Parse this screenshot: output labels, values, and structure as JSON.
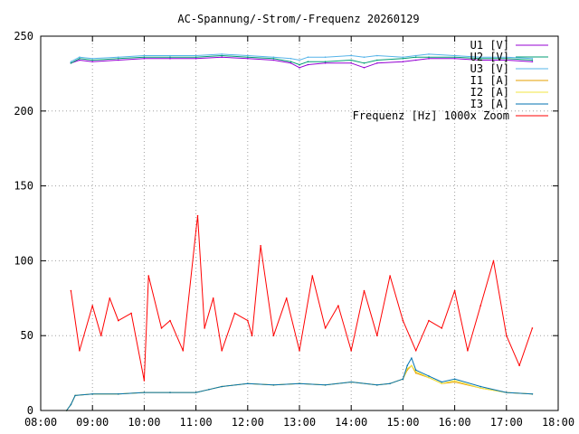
{
  "chart_data": {
    "type": "line",
    "title": "AC-Spannung/-Strom/-Frequenz 20260129",
    "xlabel": "",
    "ylabel": "",
    "xlim": [
      "08:00",
      "18:00"
    ],
    "ylim": [
      0,
      250
    ],
    "x_ticks": [
      "08:00",
      "09:00",
      "10:00",
      "11:00",
      "12:00",
      "13:00",
      "14:00",
      "15:00",
      "16:00",
      "17:00",
      "18:00"
    ],
    "y_ticks": [
      0,
      50,
      100,
      150,
      200,
      250
    ],
    "grid": true,
    "legend_position": "top-right",
    "x_unit": "time of day",
    "series": [
      {
        "name": "U1 [V]",
        "color": "#9400d3",
        "x": [
          "08:35",
          "08:45",
          "09:00",
          "09:30",
          "10:00",
          "10:30",
          "11:00",
          "11:30",
          "12:00",
          "12:30",
          "12:50",
          "13:00",
          "13:10",
          "13:30",
          "14:00",
          "14:15",
          "14:30",
          "15:00",
          "15:15",
          "15:30",
          "16:00",
          "16:30",
          "17:00",
          "17:30"
        ],
        "values": [
          232,
          234,
          233,
          234,
          235,
          235,
          235,
          236,
          235,
          234,
          232,
          229,
          231,
          232,
          232,
          229,
          232,
          233,
          234,
          235,
          235,
          234,
          234,
          233
        ]
      },
      {
        "name": "U2 [V]",
        "color": "#009e73",
        "x": [
          "08:35",
          "08:45",
          "09:00",
          "09:30",
          "10:00",
          "10:30",
          "11:00",
          "11:30",
          "12:00",
          "12:30",
          "12:50",
          "13:00",
          "13:10",
          "13:30",
          "14:00",
          "14:15",
          "14:30",
          "15:00",
          "15:15",
          "15:30",
          "16:00",
          "16:30",
          "17:00",
          "17:30"
        ],
        "values": [
          232,
          235,
          234,
          235,
          236,
          236,
          236,
          237,
          236,
          235,
          233,
          231,
          233,
          233,
          234,
          232,
          234,
          235,
          236,
          236,
          236,
          235,
          235,
          234
        ]
      },
      {
        "name": "U3 [V]",
        "color": "#56b4e9",
        "x": [
          "08:35",
          "08:45",
          "09:00",
          "09:30",
          "10:00",
          "10:30",
          "11:00",
          "11:30",
          "12:00",
          "12:30",
          "12:50",
          "13:00",
          "13:10",
          "13:30",
          "14:00",
          "14:15",
          "14:30",
          "15:00",
          "15:15",
          "15:30",
          "16:00",
          "16:30",
          "17:00",
          "17:30"
        ],
        "values": [
          233,
          236,
          235,
          236,
          237,
          237,
          237,
          238,
          237,
          236,
          235,
          234,
          236,
          236,
          237,
          236,
          237,
          236,
          237,
          238,
          237,
          236,
          236,
          235
        ]
      },
      {
        "name": "I1 [A]",
        "color": "#e69f00",
        "x": [
          "08:30",
          "08:35",
          "08:40",
          "09:00",
          "09:30",
          "10:00",
          "10:30",
          "11:00",
          "11:15",
          "11:30",
          "12:00",
          "12:30",
          "13:00",
          "13:30",
          "14:00",
          "14:30",
          "14:45",
          "15:00",
          "15:05",
          "15:10",
          "15:15",
          "15:30",
          "15:45",
          "16:00",
          "16:30",
          "17:00",
          "17:30"
        ],
        "values": [
          0,
          4,
          10,
          11,
          11,
          12,
          12,
          12,
          14,
          16,
          18,
          17,
          18,
          17,
          19,
          17,
          18,
          21,
          27,
          30,
          25,
          22,
          18,
          19,
          15,
          12,
          11
        ]
      },
      {
        "name": "I2 [A]",
        "color": "#f0e442",
        "x": [
          "08:30",
          "08:35",
          "08:40",
          "09:00",
          "09:30",
          "10:00",
          "10:30",
          "11:00",
          "11:15",
          "11:30",
          "12:00",
          "12:30",
          "13:00",
          "13:30",
          "14:00",
          "14:30",
          "14:45",
          "15:00",
          "15:05",
          "15:10",
          "15:15",
          "15:30",
          "15:45",
          "16:00",
          "16:30",
          "17:00",
          "17:30"
        ],
        "values": [
          0,
          4,
          10,
          11,
          11,
          12,
          12,
          12,
          14,
          16,
          18,
          17,
          18,
          17,
          19,
          17,
          18,
          21,
          28,
          30,
          26,
          22,
          18,
          20,
          15,
          12,
          11
        ]
      },
      {
        "name": "I3 [A]",
        "color": "#0072b2",
        "x": [
          "08:30",
          "08:35",
          "08:40",
          "09:00",
          "09:30",
          "10:00",
          "10:30",
          "11:00",
          "11:15",
          "11:30",
          "12:00",
          "12:30",
          "13:00",
          "13:30",
          "14:00",
          "14:30",
          "14:45",
          "15:00",
          "15:05",
          "15:10",
          "15:15",
          "15:30",
          "15:45",
          "16:00",
          "16:30",
          "17:00",
          "17:30"
        ],
        "values": [
          0,
          4,
          10,
          11,
          11,
          12,
          12,
          12,
          14,
          16,
          18,
          17,
          18,
          17,
          19,
          17,
          18,
          21,
          30,
          35,
          27,
          23,
          19,
          21,
          16,
          12,
          11
        ]
      },
      {
        "name": "Frequenz [Hz] 1000x Zoom",
        "color": "#ff0000",
        "x": [
          "08:35",
          "08:45",
          "09:00",
          "09:10",
          "09:20",
          "09:30",
          "09:45",
          "10:00",
          "10:05",
          "10:20",
          "10:30",
          "10:45",
          "11:00",
          "11:02",
          "11:10",
          "11:20",
          "11:30",
          "11:45",
          "12:00",
          "12:05",
          "12:15",
          "12:30",
          "12:45",
          "13:00",
          "13:15",
          "13:30",
          "13:45",
          "14:00",
          "14:15",
          "14:30",
          "14:45",
          "15:00",
          "15:15",
          "15:30",
          "15:45",
          "16:00",
          "16:15",
          "16:30",
          "16:45",
          "17:00",
          "17:15",
          "17:30"
        ],
        "values": [
          80,
          40,
          70,
          50,
          75,
          60,
          65,
          20,
          90,
          55,
          60,
          40,
          120,
          130,
          55,
          75,
          40,
          65,
          60,
          50,
          110,
          50,
          75,
          40,
          90,
          55,
          70,
          40,
          80,
          50,
          90,
          60,
          40,
          60,
          55,
          80,
          40,
          70,
          100,
          50,
          30,
          55
        ]
      }
    ]
  }
}
